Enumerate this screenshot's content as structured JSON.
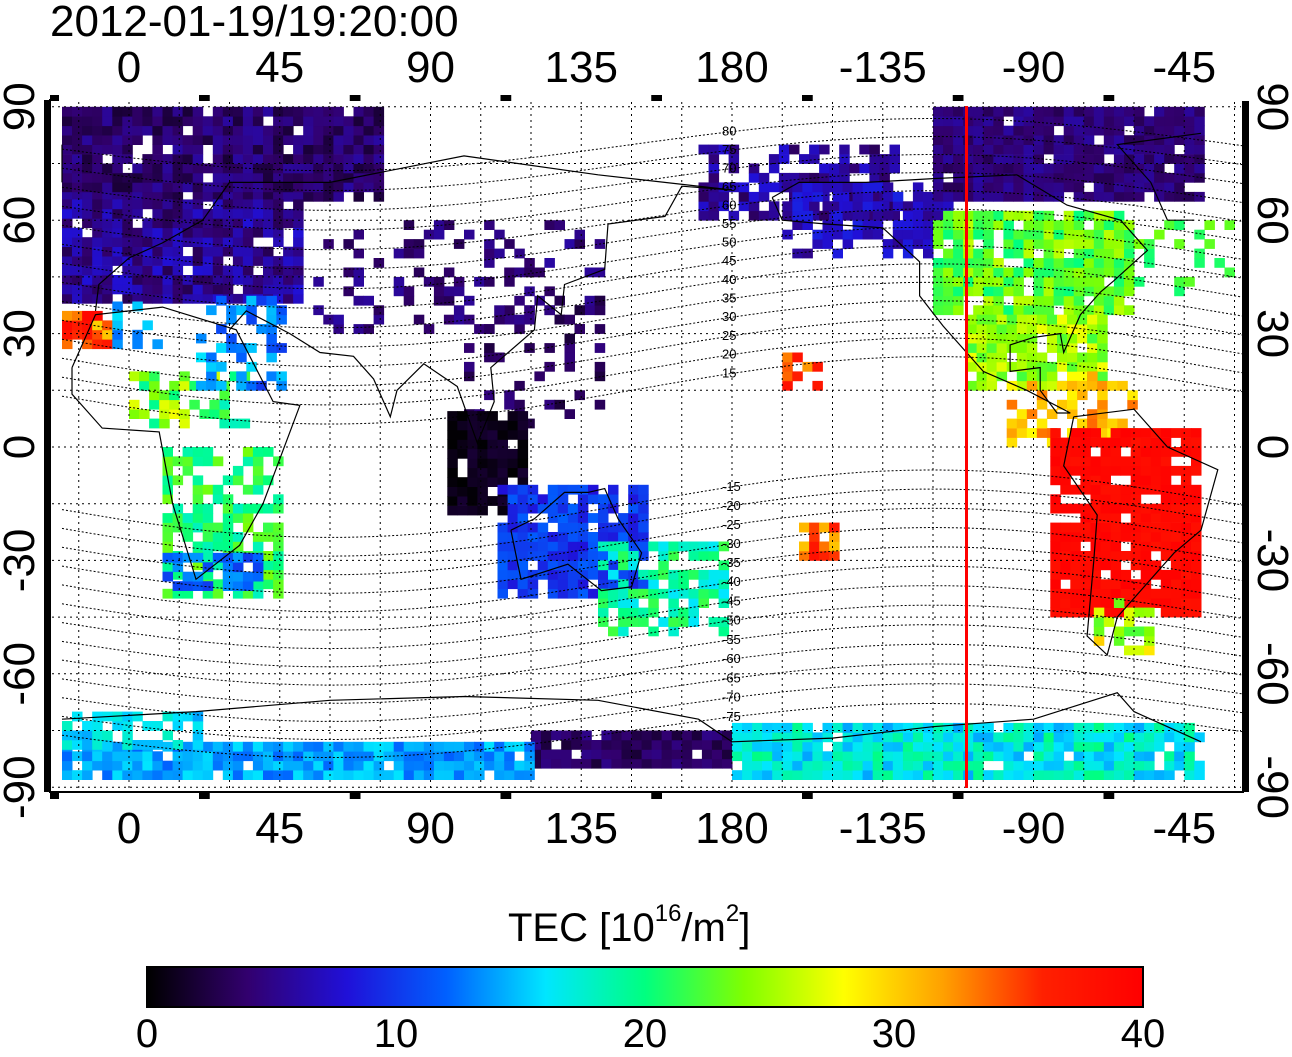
{
  "title": "2012-01-19/19:20:00",
  "map": {
    "projection": "equirectangular",
    "lon_ticks": [
      "0",
      "45",
      "90",
      "135",
      "180",
      "-135",
      "-90",
      "-45"
    ],
    "lat_ticks_left": [
      "90",
      "60",
      "30",
      "0",
      "-30",
      "-60",
      "-90"
    ],
    "lat_ticks_right": [
      "90",
      "60",
      "30",
      "0",
      "-30",
      "-60",
      "-90"
    ],
    "grid": "dotted, every 15 degrees",
    "magnetic_latitude_contours": [
      "80",
      "75",
      "70",
      "65",
      "60",
      "55",
      "50",
      "45",
      "40",
      "35",
      "30",
      "25",
      "20",
      "15",
      "-15",
      "-20",
      "-25",
      "-30",
      "-35",
      "-40",
      "-45",
      "-50",
      "-55",
      "-60",
      "-65",
      "-70",
      "-75"
    ],
    "sun_meridian_line_color": "#ff0000",
    "sun_meridian_longitude": -110
  },
  "colorbar": {
    "label": "TEC  [10",
    "label_exp": "16",
    "label_mid": "/m",
    "label_exp2": "2",
    "label_end": "]",
    "min_label": "0",
    "ticks": [
      "0",
      "10",
      "20",
      "30",
      "40"
    ],
    "colormap": [
      "#000000",
      "#32006e",
      "#2010d8",
      "#0060ff",
      "#00e6ff",
      "#00ff80",
      "#80ff00",
      "#ffff00",
      "#ffa000",
      "#ff2000",
      "#ff0000"
    ]
  }
}
